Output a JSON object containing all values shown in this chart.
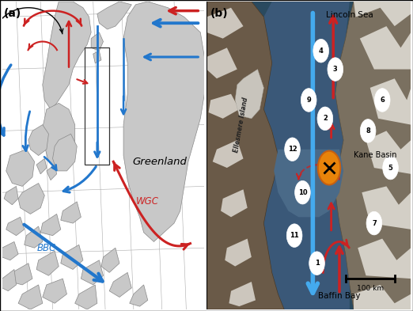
{
  "fig_width": 5.22,
  "fig_height": 3.93,
  "dpi": 100,
  "panel_a": {
    "label": "(a)",
    "red_color": "#cc2222",
    "blue_color": "#2277cc",
    "blue_light": "#55aaee",
    "land_color": "#c8c8c8",
    "land_edge": "#888888",
    "bg_color": "white",
    "greenland_text": "Greenland",
    "BBC_text": "BBC",
    "WGC_text": "WGC"
  },
  "panel_b": {
    "label": "(b)",
    "red_color": "#cc2222",
    "blue_color": "#44aaee",
    "Lincoln_Sea_text": "Lincoln Sea",
    "Baffin_Bay_text": "Baffin Bay",
    "Kane_Basin_text": "Kane Basin",
    "Ellesmere_text": "Ellesmere Island",
    "scale_text": "100 km",
    "ocean_color": "#5a7a9a",
    "land_color_left": "#8a7a65",
    "land_color_right": "#9a8a78",
    "snow_color": "#dedad2"
  }
}
